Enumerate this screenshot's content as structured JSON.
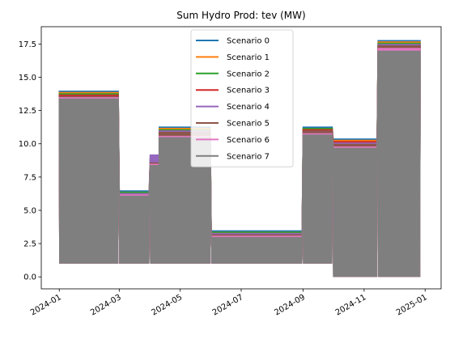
{
  "chart_data": {
    "type": "line",
    "title": "Sum Hydro Prod: tev (MW)",
    "xlabel": "",
    "ylabel": "",
    "xlim": [
      "2023-12-14",
      "2025-01-17"
    ],
    "ylim": [
      -0.9,
      18.8
    ],
    "grid": false,
    "legend_position": "top-center",
    "x_ticks": [
      {
        "date": "2024-01-01",
        "label": "2024-01"
      },
      {
        "date": "2024-03-01",
        "label": "2024-03"
      },
      {
        "date": "2024-05-01",
        "label": "2024-05"
      },
      {
        "date": "2024-07-01",
        "label": "2024-07"
      },
      {
        "date": "2024-09-01",
        "label": "2024-09"
      },
      {
        "date": "2024-11-01",
        "label": "2024-11"
      },
      {
        "date": "2025-01-01",
        "label": "2025-01"
      }
    ],
    "y_ticks": [
      {
        "value": 0.0,
        "label": "0.0"
      },
      {
        "value": 2.5,
        "label": "2.5"
      },
      {
        "value": 5.0,
        "label": "5.0"
      },
      {
        "value": 7.5,
        "label": "7.5"
      },
      {
        "value": 10.0,
        "label": "10.0"
      },
      {
        "value": 12.5,
        "label": "12.5"
      },
      {
        "value": 15.0,
        "label": "15.0"
      },
      {
        "value": 17.5,
        "label": "17.5"
      }
    ],
    "series": [
      {
        "name": "Scenario 0",
        "color": "#1f77b4",
        "segments": [
          {
            "start": "2024-01-01",
            "end": "2024-02-29",
            "high": 14.0,
            "low": 1.0
          },
          {
            "start": "2024-03-01",
            "end": "2024-03-31",
            "high": 6.5,
            "low": 1.0
          },
          {
            "start": "2024-04-01",
            "end": "2024-04-10",
            "high": 9.0,
            "low": 1.0
          },
          {
            "start": "2024-04-10",
            "end": "2024-05-31",
            "high": 11.3,
            "low": 1.0
          },
          {
            "start": "2024-06-01",
            "end": "2024-08-31",
            "high": 3.5,
            "low": 1.0
          },
          {
            "start": "2024-09-01",
            "end": "2024-09-30",
            "high": 11.3,
            "low": 1.0
          },
          {
            "start": "2024-10-01",
            "end": "2024-11-14",
            "high": 10.4,
            "low": 0.0
          },
          {
            "start": "2024-11-15",
            "end": "2024-12-27",
            "high": 17.8,
            "low": 0.0
          }
        ]
      },
      {
        "name": "Scenario 1",
        "color": "#ff7f0e",
        "segments": [
          {
            "start": "2024-01-01",
            "end": "2024-02-29",
            "high": 13.9,
            "low": 1.0
          },
          {
            "start": "2024-03-01",
            "end": "2024-03-31",
            "high": 6.4,
            "low": 1.0
          },
          {
            "start": "2024-04-01",
            "end": "2024-04-10",
            "high": 8.9,
            "low": 1.0
          },
          {
            "start": "2024-04-10",
            "end": "2024-05-31",
            "high": 11.2,
            "low": 1.0
          },
          {
            "start": "2024-06-01",
            "end": "2024-08-31",
            "high": 3.4,
            "low": 1.0
          },
          {
            "start": "2024-09-01",
            "end": "2024-09-30",
            "high": 11.2,
            "low": 1.0
          },
          {
            "start": "2024-10-01",
            "end": "2024-11-14",
            "high": 10.3,
            "low": 0.0
          },
          {
            "start": "2024-11-15",
            "end": "2024-12-27",
            "high": 17.7,
            "low": 0.0
          }
        ]
      },
      {
        "name": "Scenario 2",
        "color": "#2ca02c",
        "segments": [
          {
            "start": "2024-01-01",
            "end": "2024-02-29",
            "high": 13.8,
            "low": 1.0
          },
          {
            "start": "2024-03-01",
            "end": "2024-03-31",
            "high": 6.4,
            "low": 1.0
          },
          {
            "start": "2024-04-01",
            "end": "2024-04-10",
            "high": 8.8,
            "low": 1.0
          },
          {
            "start": "2024-04-10",
            "end": "2024-05-31",
            "high": 11.1,
            "low": 1.0
          },
          {
            "start": "2024-06-01",
            "end": "2024-08-31",
            "high": 3.4,
            "low": 1.0
          },
          {
            "start": "2024-09-01",
            "end": "2024-09-30",
            "high": 11.2,
            "low": 1.0
          },
          {
            "start": "2024-10-01",
            "end": "2024-11-14",
            "high": 10.2,
            "low": 0.0
          },
          {
            "start": "2024-11-15",
            "end": "2024-12-27",
            "high": 17.6,
            "low": 0.0
          }
        ]
      },
      {
        "name": "Scenario 3",
        "color": "#d62728",
        "segments": [
          {
            "start": "2024-01-01",
            "end": "2024-02-29",
            "high": 13.7,
            "low": 1.0
          },
          {
            "start": "2024-03-01",
            "end": "2024-03-31",
            "high": 6.3,
            "low": 1.0
          },
          {
            "start": "2024-04-01",
            "end": "2024-04-10",
            "high": 8.7,
            "low": 1.0
          },
          {
            "start": "2024-04-10",
            "end": "2024-05-31",
            "high": 11.0,
            "low": 1.0
          },
          {
            "start": "2024-06-01",
            "end": "2024-08-31",
            "high": 3.3,
            "low": 1.0
          },
          {
            "start": "2024-09-01",
            "end": "2024-09-30",
            "high": 11.1,
            "low": 1.0
          },
          {
            "start": "2024-10-01",
            "end": "2024-11-14",
            "high": 10.2,
            "low": 0.0
          },
          {
            "start": "2024-11-15",
            "end": "2024-12-27",
            "high": 17.5,
            "low": 0.0
          }
        ]
      },
      {
        "name": "Scenario 4",
        "color": "#9467bd",
        "segments": [
          {
            "start": "2024-01-01",
            "end": "2024-02-29",
            "high": 13.6,
            "low": 1.0
          },
          {
            "start": "2024-03-01",
            "end": "2024-03-31",
            "high": 6.3,
            "low": 1.0
          },
          {
            "start": "2024-04-01",
            "end": "2024-04-10",
            "high": 9.2,
            "low": 1.0
          },
          {
            "start": "2024-04-10",
            "end": "2024-05-31",
            "high": 11.0,
            "low": 1.0
          },
          {
            "start": "2024-06-01",
            "end": "2024-08-31",
            "high": 3.3,
            "low": 1.0
          },
          {
            "start": "2024-09-01",
            "end": "2024-09-30",
            "high": 11.0,
            "low": 1.0
          },
          {
            "start": "2024-10-01",
            "end": "2024-11-14",
            "high": 10.1,
            "low": 0.0
          },
          {
            "start": "2024-11-15",
            "end": "2024-12-27",
            "high": 17.5,
            "low": 0.0
          }
        ]
      },
      {
        "name": "Scenario 5",
        "color": "#8c564b",
        "segments": [
          {
            "start": "2024-01-01",
            "end": "2024-02-29",
            "high": 13.6,
            "low": 1.0
          },
          {
            "start": "2024-03-01",
            "end": "2024-03-31",
            "high": 6.2,
            "low": 1.0
          },
          {
            "start": "2024-04-01",
            "end": "2024-04-10",
            "high": 8.6,
            "low": 1.0
          },
          {
            "start": "2024-04-10",
            "end": "2024-05-31",
            "high": 10.9,
            "low": 1.0
          },
          {
            "start": "2024-06-01",
            "end": "2024-08-31",
            "high": 3.2,
            "low": 1.0
          },
          {
            "start": "2024-09-01",
            "end": "2024-09-30",
            "high": 11.0,
            "low": 1.0
          },
          {
            "start": "2024-10-01",
            "end": "2024-11-14",
            "high": 10.0,
            "low": 0.0
          },
          {
            "start": "2024-11-15",
            "end": "2024-12-27",
            "high": 17.4,
            "low": 0.0
          }
        ]
      },
      {
        "name": "Scenario 6",
        "color": "#e377c2",
        "segments": [
          {
            "start": "2024-01-01",
            "end": "2024-02-29",
            "high": 13.5,
            "low": 1.0
          },
          {
            "start": "2024-03-01",
            "end": "2024-03-31",
            "high": 6.2,
            "low": 1.0
          },
          {
            "start": "2024-04-01",
            "end": "2024-04-10",
            "high": 8.5,
            "low": 1.0
          },
          {
            "start": "2024-04-10",
            "end": "2024-05-31",
            "high": 10.6,
            "low": 1.0
          },
          {
            "start": "2024-06-01",
            "end": "2024-08-31",
            "high": 3.1,
            "low": 1.0
          },
          {
            "start": "2024-09-01",
            "end": "2024-09-30",
            "high": 10.8,
            "low": 1.0
          },
          {
            "start": "2024-10-01",
            "end": "2024-11-14",
            "high": 9.8,
            "low": 0.0
          },
          {
            "start": "2024-11-15",
            "end": "2024-12-27",
            "high": 17.2,
            "low": 0.0
          }
        ]
      },
      {
        "name": "Scenario 7",
        "color": "#7f7f7f",
        "segments": [
          {
            "start": "2024-01-01",
            "end": "2024-02-29",
            "high": 13.4,
            "low": 1.0
          },
          {
            "start": "2024-03-01",
            "end": "2024-03-31",
            "high": 6.1,
            "low": 1.0
          },
          {
            "start": "2024-04-01",
            "end": "2024-04-10",
            "high": 8.4,
            "low": 1.0
          },
          {
            "start": "2024-04-10",
            "end": "2024-05-31",
            "high": 10.5,
            "low": 1.0
          },
          {
            "start": "2024-06-01",
            "end": "2024-08-31",
            "high": 3.0,
            "low": 1.0
          },
          {
            "start": "2024-09-01",
            "end": "2024-09-30",
            "high": 10.7,
            "low": 1.0
          },
          {
            "start": "2024-10-01",
            "end": "2024-11-14",
            "high": 9.7,
            "low": 0.0
          },
          {
            "start": "2024-11-15",
            "end": "2024-12-27",
            "high": 17.0,
            "low": 0.0
          }
        ]
      }
    ]
  }
}
